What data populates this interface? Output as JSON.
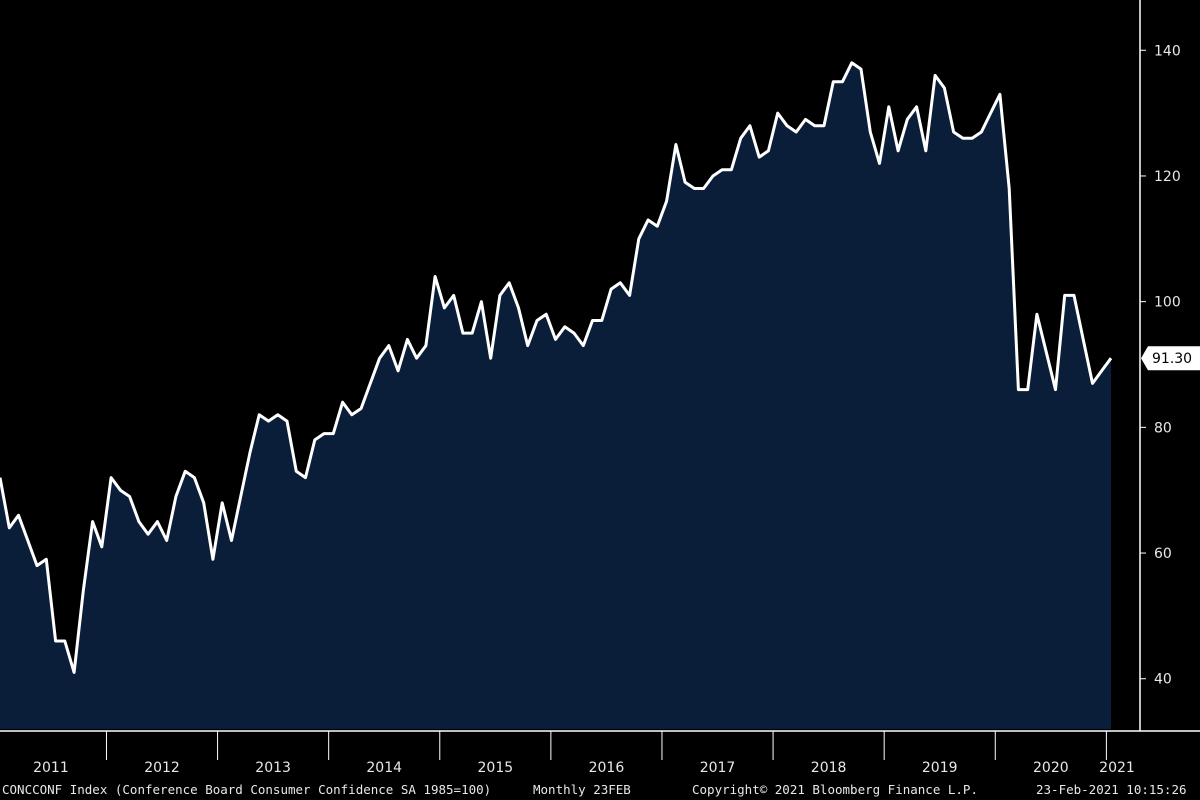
{
  "chart_data": {
    "type": "area",
    "series": [
      {
        "name": "",
        "x": [
          "2011-01",
          "2011-02",
          "2011-03",
          "2011-04",
          "2011-05",
          "2011-06",
          "2011-07",
          "2011-08",
          "2011-09",
          "2011-10",
          "2011-11",
          "2011-12",
          "2012-01",
          "2012-02",
          "2012-03",
          "2012-04",
          "2012-05",
          "2012-06",
          "2012-07",
          "2012-08",
          "2012-09",
          "2012-10",
          "2012-11",
          "2012-12",
          "2013-01",
          "2013-02",
          "2013-03",
          "2013-04",
          "2013-05",
          "2013-06",
          "2013-07",
          "2013-08",
          "2013-09",
          "2013-10",
          "2013-11",
          "2013-12",
          "2014-01",
          "2014-02",
          "2014-03",
          "2014-04",
          "2014-05",
          "2014-06",
          "2014-07",
          "2014-08",
          "2014-09",
          "2014-10",
          "2014-11",
          "2014-12",
          "2015-01",
          "2015-02",
          "2015-03",
          "2015-04",
          "2015-05",
          "2015-06",
          "2015-07",
          "2015-08",
          "2015-09",
          "2015-10",
          "2015-11",
          "2015-12",
          "2016-01",
          "2016-02",
          "2016-03",
          "2016-04",
          "2016-05",
          "2016-06",
          "2016-07",
          "2016-08",
          "2016-09",
          "2016-10",
          "2016-11",
          "2016-12",
          "2017-01",
          "2017-02",
          "2017-03",
          "2017-04",
          "2017-05",
          "2017-06",
          "2017-07",
          "2017-08",
          "2017-09",
          "2017-10",
          "2017-11",
          "2017-12",
          "2018-01",
          "2018-02",
          "2018-03",
          "2018-04",
          "2018-05",
          "2018-06",
          "2018-07",
          "2018-08",
          "2018-09",
          "2018-10",
          "2018-11",
          "2018-12",
          "2019-01",
          "2019-02",
          "2019-03",
          "2019-04",
          "2019-05",
          "2019-06",
          "2019-07",
          "2019-08",
          "2019-09",
          "2019-10",
          "2019-11",
          "2019-12",
          "2020-01",
          "2020-02",
          "2020-03",
          "2020-04",
          "2020-05",
          "2020-06",
          "2020-07",
          "2020-08",
          "2020-09",
          "2020-10",
          "2020-11",
          "2020-12",
          "2021-01"
        ],
        "values": [
          72,
          64,
          66,
          62,
          58,
          59,
          46,
          46,
          41,
          54,
          65,
          61,
          72,
          70,
          69,
          65,
          63,
          65,
          62,
          69,
          73,
          72,
          68,
          59,
          68,
          62,
          69,
          76,
          82,
          81,
          82,
          81,
          73,
          72,
          78,
          79,
          79,
          84,
          82,
          83,
          87,
          91,
          93,
          89,
          94,
          91,
          93,
          104,
          99,
          101,
          95,
          95,
          100,
          91,
          101,
          103,
          99,
          93,
          97,
          98,
          94,
          96,
          95,
          93,
          97,
          97,
          102,
          103,
          101,
          110,
          113,
          112,
          116,
          125,
          119,
          118,
          118,
          120,
          121,
          121,
          126,
          128,
          123,
          124,
          130,
          128,
          127,
          129,
          128,
          128,
          135,
          135,
          138,
          137,
          127,
          122,
          131,
          124,
          129,
          131,
          124,
          136,
          134,
          127,
          126,
          126,
          127,
          130,
          133,
          118,
          86,
          86,
          98,
          92,
          86,
          101,
          101,
          94,
          87,
          89,
          91
        ]
      }
    ],
    "xlabel": "",
    "ylabel": "",
    "ylim": [
      32,
      148
    ],
    "yticks": [
      40,
      60,
      80,
      100,
      120,
      140
    ],
    "xticks": [
      "2011",
      "2012",
      "2013",
      "2014",
      "2015",
      "2016",
      "2017",
      "2018",
      "2019",
      "2020",
      "2021"
    ],
    "last_value_label": "91.30",
    "grid": false,
    "colors": {
      "background": "#000000",
      "fill": "#0a1e3a",
      "line": "#ffffff",
      "axis": "#ffffff",
      "text": "#e8e8e8"
    }
  },
  "footer": {
    "ticker": "CONCCONF Index (Conference Board Consumer Confidence SA 1985=100)",
    "freq": "Monthly 23FEB",
    "copyright": "Copyright© 2021 Bloomberg Finance L.P.",
    "timestamp": "23-Feb-2021 10:15:26"
  }
}
